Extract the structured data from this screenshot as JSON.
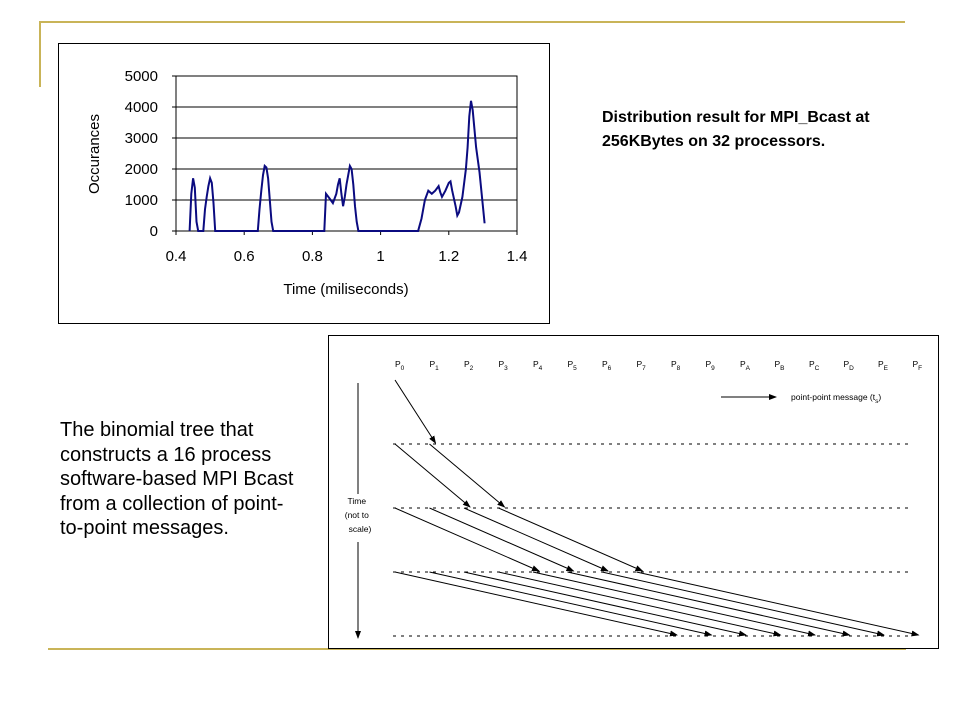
{
  "caption_top": "Distribution result for MPI_Bcast at 256KBytes on 32 processors.",
  "caption_bottom": "The binomial tree that constructs a 16 process software-based MPI Bcast from a collection of point-to-point messages.",
  "colors": {
    "accent": "#c9b458",
    "series": "#0b0b80"
  },
  "chart_data": [
    {
      "type": "line",
      "title": "",
      "xlabel": "Time (miliseconds)",
      "ylabel": "Occurances",
      "xlim": [
        0.4,
        1.4
      ],
      "ylim": [
        0,
        5000
      ],
      "xticks": [
        "0.4",
        "0.6",
        "0.8",
        "1",
        "1.2",
        "1.4"
      ],
      "yticks": [
        "0",
        "1000",
        "2000",
        "3000",
        "4000",
        "5000"
      ],
      "grid": true,
      "series": [
        {
          "name": "",
          "points": [
            [
              0.44,
              0
            ],
            [
              0.445,
              1200
            ],
            [
              0.45,
              1700
            ],
            [
              0.455,
              1400
            ],
            [
              0.46,
              300
            ],
            [
              0.465,
              0
            ],
            [
              0.47,
              0
            ],
            [
              0.48,
              0
            ],
            [
              0.485,
              700
            ],
            [
              0.49,
              1100
            ],
            [
              0.495,
              1450
            ],
            [
              0.5,
              1700
            ],
            [
              0.505,
              1550
            ],
            [
              0.51,
              900
            ],
            [
              0.515,
              0
            ],
            [
              0.515,
              0
            ],
            [
              0.62,
              0
            ],
            [
              0.64,
              0
            ],
            [
              0.645,
              700
            ],
            [
              0.65,
              1300
            ],
            [
              0.655,
              1800
            ],
            [
              0.66,
              2100
            ],
            [
              0.665,
              2050
            ],
            [
              0.67,
              1700
            ],
            [
              0.675,
              1000
            ],
            [
              0.68,
              300
            ],
            [
              0.685,
              0
            ],
            [
              0.72,
              0
            ],
            [
              0.835,
              0
            ],
            [
              0.84,
              1200
            ],
            [
              0.85,
              1050
            ],
            [
              0.86,
              900
            ],
            [
              0.87,
              1200
            ],
            [
              0.875,
              1500
            ],
            [
              0.88,
              1700
            ],
            [
              0.885,
              1200
            ],
            [
              0.89,
              800
            ],
            [
              0.895,
              1100
            ],
            [
              0.9,
              1500
            ],
            [
              0.905,
              1800
            ],
            [
              0.91,
              2100
            ],
            [
              0.915,
              2000
            ],
            [
              0.92,
              1500
            ],
            [
              0.925,
              800
            ],
            [
              0.93,
              300
            ],
            [
              0.935,
              0
            ],
            [
              1.11,
              0
            ],
            [
              1.12,
              400
            ],
            [
              1.13,
              1000
            ],
            [
              1.14,
              1300
            ],
            [
              1.15,
              1200
            ],
            [
              1.16,
              1300
            ],
            [
              1.17,
              1450
            ],
            [
              1.175,
              1250
            ],
            [
              1.18,
              1100
            ],
            [
              1.19,
              1300
            ],
            [
              1.2,
              1550
            ],
            [
              1.205,
              1600
            ],
            [
              1.21,
              1300
            ],
            [
              1.22,
              800
            ],
            [
              1.225,
              500
            ],
            [
              1.23,
              600
            ],
            [
              1.24,
              1100
            ],
            [
              1.25,
              2000
            ],
            [
              1.255,
              2700
            ],
            [
              1.26,
              3700
            ],
            [
              1.265,
              4200
            ],
            [
              1.27,
              3900
            ],
            [
              1.275,
              3300
            ],
            [
              1.28,
              2700
            ],
            [
              1.29,
              1900
            ],
            [
              1.3,
              800
            ],
            [
              1.305,
              250
            ]
          ]
        }
      ]
    },
    {
      "type": "diagram",
      "processes": [
        "P",
        "P",
        "P",
        "P",
        "P",
        "P",
        "P",
        "P",
        "P",
        "P",
        "P",
        "P",
        "P",
        "P",
        "P",
        "P"
      ],
      "subscripts": [
        "0",
        "1",
        "2",
        "3",
        "4",
        "5",
        "6",
        "7",
        "8",
        "9",
        "A",
        "B",
        "C",
        "D",
        "E",
        "F"
      ],
      "legend_label": "point-point message (t",
      "legend_sub": "s",
      "legend_close": ")",
      "time_label": [
        "Time",
        "(not to",
        "scale)"
      ],
      "steps": 4,
      "messages": [
        {
          "from": 0,
          "to": 1,
          "step": 1
        },
        {
          "from": 0,
          "to": 2,
          "step": 2
        },
        {
          "from": 1,
          "to": 3,
          "step": 2
        },
        {
          "from": 0,
          "to": 4,
          "step": 3
        },
        {
          "from": 1,
          "to": 5,
          "step": 3
        },
        {
          "from": 2,
          "to": 6,
          "step": 3
        },
        {
          "from": 3,
          "to": 7,
          "step": 3
        },
        {
          "from": 0,
          "to": 8,
          "step": 4
        },
        {
          "from": 1,
          "to": 9,
          "step": 4
        },
        {
          "from": 2,
          "to": 10,
          "step": 4
        },
        {
          "from": 3,
          "to": 11,
          "step": 4
        },
        {
          "from": 4,
          "to": 12,
          "step": 4
        },
        {
          "from": 5,
          "to": 13,
          "step": 4
        },
        {
          "from": 6,
          "to": 14,
          "step": 4
        },
        {
          "from": 7,
          "to": 15,
          "step": 4
        }
      ]
    }
  ]
}
